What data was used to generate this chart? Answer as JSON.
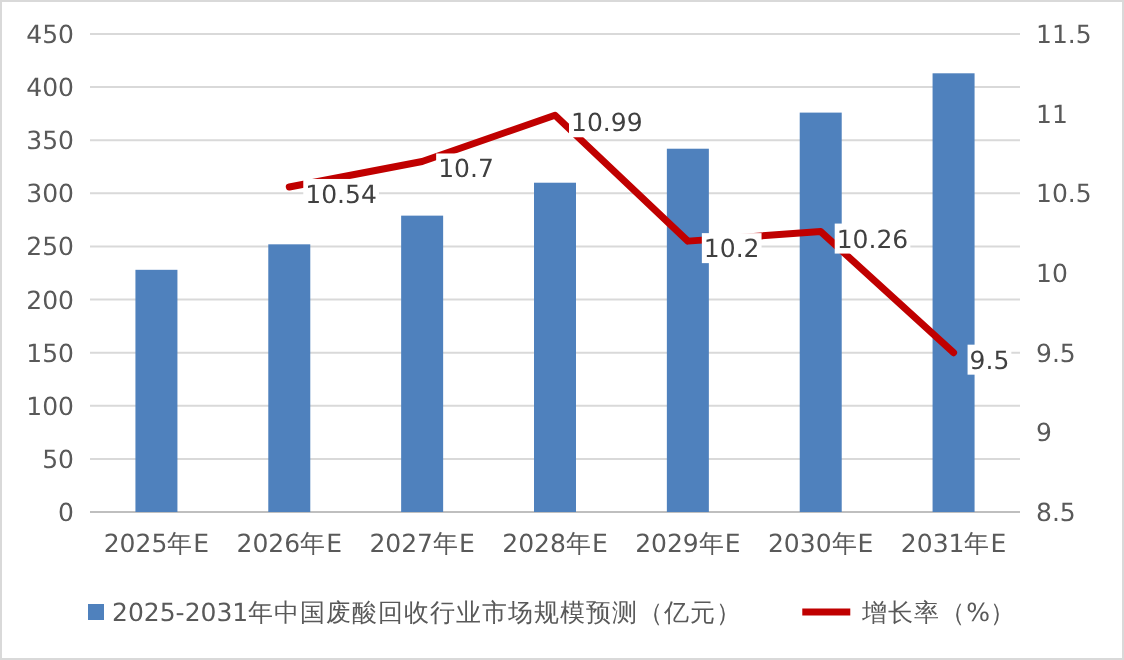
{
  "chart_data": {
    "type": "bar",
    "categories": [
      "2025年E",
      "2026年E",
      "2027年E",
      "2028年E",
      "2029年E",
      "2030年E",
      "2031年E"
    ],
    "series": [
      {
        "name": "2025-2031年中国废酸回收行业市场规模预测（亿元）",
        "color": "#4f81bd",
        "values": [
          228,
          252,
          279,
          310,
          342,
          376,
          413
        ]
      },
      {
        "name": "增长率（%）",
        "type": "line",
        "axis": "y2",
        "color": "#c00000",
        "values": [
          null,
          10.54,
          10.7,
          10.99,
          10.2,
          10.26,
          9.5
        ],
        "value_labels": [
          null,
          "10.54",
          "10.7",
          "10.99",
          "10.2",
          "10.26",
          "9.5"
        ]
      }
    ],
    "ylim": [
      0,
      450
    ],
    "yticks": [
      0,
      50,
      100,
      150,
      200,
      250,
      300,
      350,
      400,
      450
    ],
    "y2lim": [
      8.5,
      11.5
    ],
    "y2ticks": [
      8.5,
      9,
      9.5,
      10,
      10.5,
      11,
      11.5
    ],
    "grid": "y",
    "legend": "bottom"
  }
}
